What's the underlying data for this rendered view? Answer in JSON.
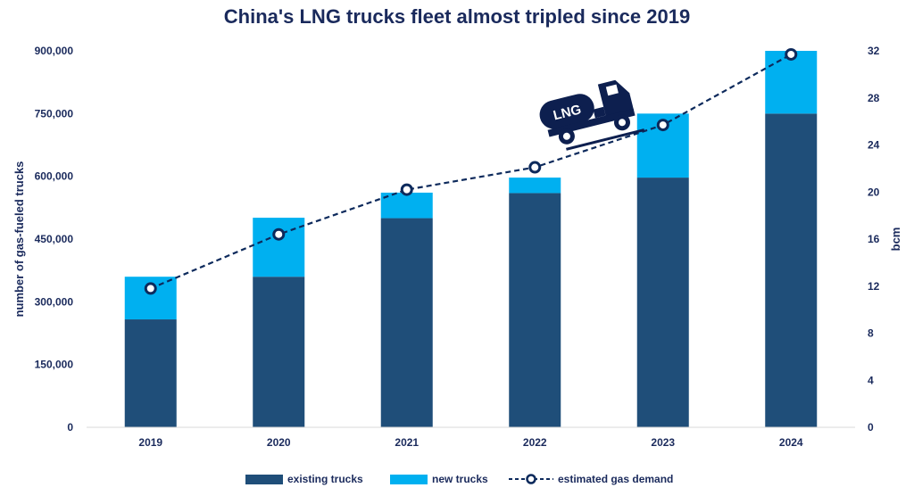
{
  "chart_data": {
    "type": "bar",
    "stacked": true,
    "title": "China's LNG trucks fleet almost tripled since 2019",
    "xlabel": "",
    "ylabel": "number of gas-fueled trucks",
    "y2label": "bcm",
    "categories": [
      "2019",
      "2020",
      "2021",
      "2022",
      "2023",
      "2024"
    ],
    "ylim": [
      0,
      900000
    ],
    "yticks": [
      "0",
      "150,000",
      "300,000",
      "450,000",
      "600,000",
      "750,000",
      "900,000"
    ],
    "y2lim": [
      0,
      32
    ],
    "y2ticks": [
      "0",
      "4",
      "8",
      "12",
      "16",
      "20",
      "24",
      "28",
      "32"
    ],
    "grid": false,
    "legend_position": "bottom",
    "series": [
      {
        "name": "existing trucks",
        "type": "bar",
        "axis": "left",
        "color": "#1f4e79",
        "values": [
          258000,
          360000,
          500000,
          560000,
          597000,
          750000
        ]
      },
      {
        "name": "new trucks",
        "type": "bar",
        "axis": "left",
        "color": "#00b0f0",
        "values": [
          102000,
          141000,
          61000,
          37000,
          153000,
          150000
        ]
      },
      {
        "name": "estimated gas demand",
        "type": "line",
        "style": "dashed",
        "axis": "right",
        "color": "#0d2a5c",
        "values": [
          11.8,
          16.4,
          20.2,
          22.1,
          25.7,
          31.7
        ]
      }
    ],
    "annotations": [
      {
        "type": "icon",
        "icon": "lng-truck-icon",
        "text": "LNG"
      }
    ]
  }
}
